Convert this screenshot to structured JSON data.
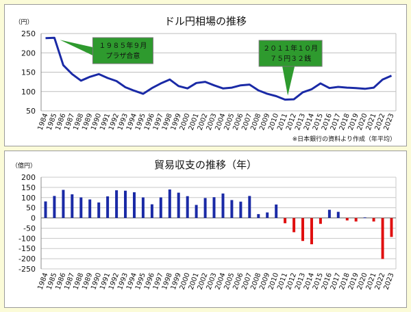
{
  "chart_data": [
    {
      "type": "line",
      "title": "ドル円相場の推移",
      "ylabel": "（円）",
      "note": "※日本銀行の資料より作成（年平均）",
      "ylim": [
        50,
        250
      ],
      "yticks": [
        50,
        100,
        150,
        200,
        250
      ],
      "grid": true,
      "series_color": "#1a2aa6",
      "callout_color": "#2e9a2e",
      "x": [
        "1984",
        "1985",
        "1986",
        "1987",
        "1988",
        "1989",
        "1990",
        "1991",
        "1992",
        "1993",
        "1994",
        "1995",
        "1996",
        "1997",
        "1998",
        "1999",
        "2000",
        "2001",
        "2002",
        "2003",
        "2004",
        "2005",
        "2006",
        "2007",
        "2008",
        "2009",
        "2010",
        "2011",
        "2012",
        "2013",
        "2014",
        "2015",
        "2016",
        "2017",
        "2018",
        "2019",
        "2020",
        "2021",
        "2022",
        "2023"
      ],
      "series": [
        {
          "values": [
            238,
            239,
            168,
            145,
            128,
            138,
            145,
            135,
            127,
            111,
            102,
            94,
            109,
            121,
            131,
            114,
            108,
            122,
            125,
            116,
            108,
            110,
            116,
            118,
            103,
            94,
            88,
            79,
            80,
            98,
            106,
            121,
            109,
            112,
            110,
            109,
            107,
            110,
            131,
            141
          ]
        }
      ],
      "annotations": [
        {
          "line1": "１９８５年９月",
          "line2": "プラザ合意",
          "x": "1985",
          "y": 239
        },
        {
          "line1": "２０１１年１０月",
          "line2": "７５円３２銭",
          "x": "2011",
          "y": 79
        }
      ]
    },
    {
      "type": "bar",
      "title": "貿易収支の推移（年）",
      "ylabel": "（億円）",
      "ylim": [
        -250,
        200
      ],
      "yticks": [
        200,
        150,
        100,
        50,
        0,
        -50,
        -100,
        -150,
        -200,
        -250
      ],
      "grid": true,
      "positive_color": "#1a2aa6",
      "negative_color": "#e01010",
      "categories": [
        "1984",
        "1985",
        "1986",
        "1987",
        "1988",
        "1989",
        "1990",
        "1991",
        "1992",
        "1993",
        "1994",
        "1995",
        "1996",
        "1997",
        "1998",
        "1999",
        "2000",
        "2001",
        "2002",
        "2003",
        "2004",
        "2005",
        "2006",
        "2007",
        "2008",
        "2009",
        "2010",
        "2011",
        "2012",
        "2013",
        "2014",
        "2015",
        "2016",
        "2017",
        "2018",
        "2019",
        "2020",
        "2021",
        "2022",
        "2023"
      ],
      "values": [
        81,
        108,
        138,
        116,
        101,
        91,
        76,
        106,
        136,
        134,
        126,
        101,
        67,
        101,
        140,
        124,
        107,
        64,
        98,
        102,
        120,
        88,
        80,
        108,
        19,
        27,
        66,
        -26,
        -70,
        -113,
        -129,
        -29,
        40,
        30,
        -12,
        -17,
        3,
        -17,
        -201,
        -93
      ]
    }
  ]
}
